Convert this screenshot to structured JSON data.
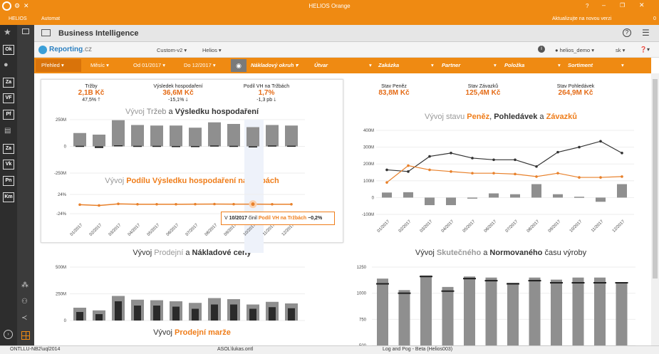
{
  "window": {
    "title": "HELIOS Orange",
    "update_text": "Aktualizujte na novou verzi",
    "count": "0"
  },
  "menu": {
    "items": [
      "HELIOS",
      "Automat"
    ]
  },
  "sidebar": {
    "badges": [
      "Ok",
      "Za",
      "VF",
      "Pf",
      "Za",
      "Vk",
      "Pn",
      "Km"
    ]
  },
  "header": {
    "title": "Business Intelligence"
  },
  "reporting": {
    "logo": "Reporting",
    "logo_suffix": ".cz",
    "menu1": "Custom-v2",
    "menu2": "Helios",
    "user": "helios_demo",
    "lang": "sk"
  },
  "filters": {
    "overview": "Přehled",
    "month": "Měsíc",
    "from": "Od 01/2017",
    "to": "Do 12/2017",
    "cost_center": "Nákladový okruh",
    "unit": "Útvar",
    "order": "Zakázka",
    "partner": "Partner",
    "item": "Položka",
    "assortment": "Sortiment"
  },
  "kpi_left": [
    {
      "label": "Tržby",
      "value": "2,1B Kč",
      "change": "47,5%",
      "dir": "up"
    },
    {
      "label": "Výsledek hospodaření",
      "value": "36,6M Kč",
      "change": "-15,1%",
      "dir": "down"
    },
    {
      "label": "Podíl VH na Tržbách",
      "value": "1,7%",
      "change": "-1,3 pb",
      "dir": "down"
    }
  ],
  "kpi_right": [
    {
      "label": "Stav Peněz",
      "value": "83,8M Kč"
    },
    {
      "label": "Stav Závazků",
      "value": "125,4M Kč"
    },
    {
      "label": "Stav Pohledávek",
      "value": "264,9M Kč"
    }
  ],
  "titles": {
    "c1": {
      "a": "Vývoj ",
      "b": "Tržeb",
      "c": " a ",
      "d": "Výsledku hospodaření"
    },
    "c2": {
      "a": "Vývoj ",
      "b": "Podílu Výsledku hospodaření na Tržbách"
    },
    "c3": {
      "a": "Vývoj stavu ",
      "b": "Peněz",
      "c": ", ",
      "d": "Pohledávek",
      "e": " a ",
      "f": "Závazků"
    },
    "c4": {
      "a": "Vývoj ",
      "b": "Prodejní",
      "c": " a ",
      "d": "Nákladové ceny"
    },
    "c5": {
      "a": "Vývoj ",
      "b": "Skutečného",
      "c": " a ",
      "d": "Normovaného",
      "e": " času výroby"
    },
    "c6": {
      "a": "Vývoj ",
      "b": "Prodejní marže"
    }
  },
  "tooltip": {
    "pre": "V ",
    "month": "10/2017",
    "mid": " činil ",
    "name": "Podíl VH na Tržbách",
    "value": " −0,2%"
  },
  "months": [
    "01/2017",
    "02/2017",
    "03/2017",
    "04/2017",
    "05/2017",
    "06/2017",
    "07/2017",
    "08/2017",
    "09/2017",
    "10/2017",
    "11/2017",
    "12/2017"
  ],
  "chart_data": [
    {
      "type": "bar",
      "title": "Vývoj Tržeb a Výsledku hospodaření",
      "yticks": [
        "250M",
        "0",
        "-250M"
      ],
      "ylim": [
        -250,
        250
      ],
      "series": [
        {
          "name": "Tržby",
          "values": [
            125,
            110,
            245,
            200,
            195,
            195,
            175,
            225,
            210,
            180,
            200,
            195
          ]
        },
        {
          "name": "Výsledek hospodaření",
          "values": [
            5,
            -15,
            10,
            5,
            5,
            3,
            3,
            8,
            5,
            -5,
            8,
            6
          ]
        }
      ]
    },
    {
      "type": "line",
      "title": "Vývoj Podílu Výsledku hospodaření na Tržbách",
      "yticks": [
        "24%",
        "-24%"
      ],
      "ylim": [
        -24,
        24
      ],
      "values": [
        -1.5,
        -3.5,
        0.5,
        -0.5,
        -0.5,
        -0.5,
        -0.2,
        0,
        -0.2,
        -0.2,
        -0.5,
        -0.5
      ]
    },
    {
      "type": "line",
      "title": "Vývoj stavu Peněz, Pohledávek a Závazků",
      "yticks": [
        "400M",
        "300M",
        "200M",
        "100M",
        "0",
        "-100M"
      ],
      "ylim": [
        -100,
        400
      ],
      "series": [
        {
          "name": "Pohledávky",
          "values": [
            165,
            155,
            245,
            265,
            235,
            225,
            225,
            185,
            270,
            300,
            335,
            265
          ]
        },
        {
          "name": "Závazky",
          "values": [
            90,
            190,
            165,
            155,
            145,
            145,
            140,
            125,
            145,
            120,
            120,
            125
          ]
        },
        {
          "name": "Peníze",
          "values": [
            30,
            32,
            -45,
            -45,
            0,
            25,
            20,
            80,
            20,
            5,
            -25,
            80
          ]
        }
      ]
    },
    {
      "type": "bar",
      "title": "Vývoj Prodejní a Nákladové ceny",
      "yticks": [
        "500M",
        "250M",
        "0"
      ],
      "ylim": [
        0,
        500
      ],
      "series": [
        {
          "name": "Prodejní",
          "values": [
            120,
            95,
            230,
            195,
            190,
            180,
            165,
            210,
            200,
            150,
            175,
            160
          ]
        },
        {
          "name": "Nákladová",
          "values": [
            80,
            60,
            180,
            140,
            140,
            130,
            110,
            150,
            150,
            110,
            125,
            115
          ]
        }
      ]
    },
    {
      "type": "bar",
      "title": "Vývoj Skutečného a Normovaného času výroby",
      "yticks": [
        "1250",
        "1000",
        "750",
        "500"
      ],
      "ylim": [
        500,
        1250
      ],
      "series": [
        {
          "name": "Skutečný",
          "values": [
            1140,
            1030,
            1170,
            1060,
            1160,
            1150,
            1100,
            1150,
            1130,
            1150,
            1150,
            1105
          ]
        },
        {
          "name": "Normovaný",
          "values": [
            1090,
            1000,
            1160,
            1020,
            1140,
            1120,
            1090,
            1120,
            1100,
            1100,
            1100,
            1100
          ]
        }
      ]
    }
  ],
  "status": {
    "conn": "ONTLLU-NB2\\uql2014",
    "user": "ASOL\\lukas.ontl",
    "log": "Log and Pog - Beta (Helios003)"
  }
}
